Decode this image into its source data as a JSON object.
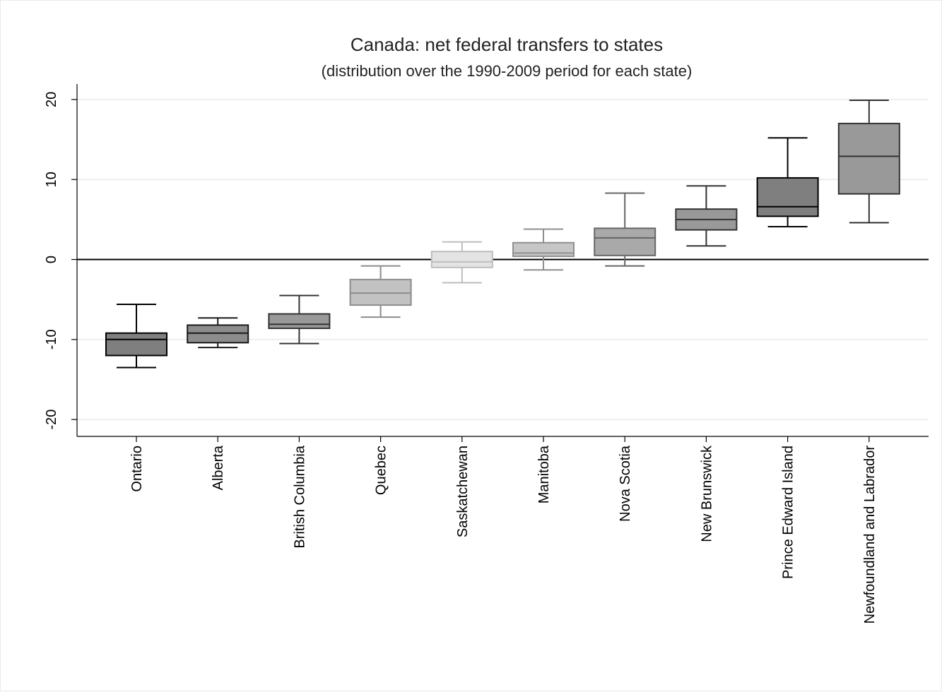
{
  "chart_data": {
    "type": "boxplot",
    "title": "Canada: net federal transfers to states",
    "subtitle": "(distribution over the 1990-2009 period for each state)",
    "xlabel": "",
    "ylabel": "",
    "ylim": [
      -22,
      22
    ],
    "yticks": [
      -20,
      -10,
      0,
      10,
      20
    ],
    "ytick_labels": [
      "-20",
      "-10",
      "0",
      "10",
      "20"
    ],
    "grid": true,
    "reference_line_y": 0,
    "categories": [
      "Ontario",
      "Alberta",
      "British Columbia",
      "Quebec",
      "Saskatchewan",
      "Manitoba",
      "Nova Scotia",
      "New Brunswick",
      "Prince Edward Island",
      "Newfoundland and Labrador"
    ],
    "boxes": [
      {
        "label": "Ontario",
        "min": -13.5,
        "q1": -12.0,
        "median": -10.0,
        "q3": -9.2,
        "max": -5.6,
        "fill": "#7f7f7f",
        "stroke": "#000000"
      },
      {
        "label": "Alberta",
        "min": -11.0,
        "q1": -10.4,
        "median": -9.2,
        "q3": -8.2,
        "max": -7.3,
        "fill": "#8c8c8c",
        "stroke": "#1a1a1a"
      },
      {
        "label": "British Columbia",
        "min": -10.5,
        "q1": -8.6,
        "median": -8.1,
        "q3": -6.8,
        "max": -4.5,
        "fill": "#999999",
        "stroke": "#333333"
      },
      {
        "label": "Quebec",
        "min": -7.2,
        "q1": -5.7,
        "median": -4.2,
        "q3": -2.5,
        "max": -0.8,
        "fill": "#c2c2c2",
        "stroke": "#8c8c8c"
      },
      {
        "label": "Saskatchewan",
        "min": -2.9,
        "q1": -1.0,
        "median": -0.3,
        "q3": 1.0,
        "max": 2.2,
        "fill": "#e3e3e3",
        "stroke": "#bdbdbd"
      },
      {
        "label": "Manitoba",
        "min": -1.3,
        "q1": 0.4,
        "median": 0.8,
        "q3": 2.1,
        "max": 3.8,
        "fill": "#c6c6c6",
        "stroke": "#8f8f8f"
      },
      {
        "label": "Nova Scotia",
        "min": -0.8,
        "q1": 0.5,
        "median": 2.7,
        "q3": 3.9,
        "max": 8.3,
        "fill": "#a9a9a9",
        "stroke": "#666666"
      },
      {
        "label": "New Brunswick",
        "min": 1.7,
        "q1": 3.7,
        "median": 5.0,
        "q3": 6.3,
        "max": 9.2,
        "fill": "#999999",
        "stroke": "#333333"
      },
      {
        "label": "Prince Edward Island",
        "min": 4.1,
        "q1": 5.4,
        "median": 6.6,
        "q3": 10.2,
        "max": 15.2,
        "fill": "#7f7f7f",
        "stroke": "#000000"
      },
      {
        "label": "Newfoundland and Labrador",
        "min": 4.6,
        "q1": 8.2,
        "median": 12.9,
        "q3": 17.0,
        "max": 19.9,
        "fill": "#999999",
        "stroke": "#333333"
      }
    ],
    "colors": {
      "gridline": "#eeeeee",
      "axis": "#000000",
      "zero_line": "#000000",
      "background": "#ffffff"
    }
  }
}
